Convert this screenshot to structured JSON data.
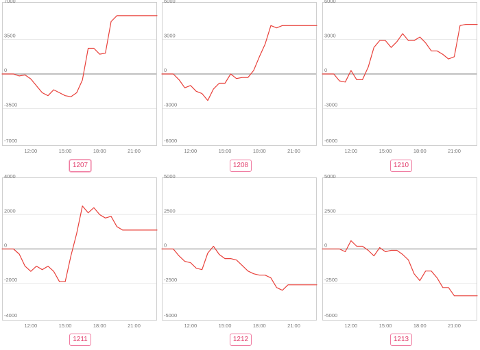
{
  "colors": {
    "series": "#e8403a",
    "badge_text": "#e2406e",
    "badge_border": "#f07aa0"
  },
  "x_labels": [
    "12:00",
    "15:00",
    "18:00",
    "21:00"
  ],
  "panels": [
    {
      "badge": "1207",
      "chart_data": {
        "type": "line",
        "ylim": [
          -7000,
          7000
        ],
        "y_ticks": [
          {
            "v": 7000,
            "label": "7000"
          },
          {
            "v": 3500,
            "label": "3500"
          },
          {
            "v": 0,
            "label": "0"
          },
          {
            "v": -3500,
            "label": "-3500"
          },
          {
            "v": -7000,
            "label": "-7000"
          }
        ],
        "x": [
          9.5,
          10,
          10.5,
          11,
          11.5,
          12,
          12.5,
          13,
          13.5,
          14,
          14.5,
          15,
          15.5,
          16,
          16.5,
          17,
          17.5,
          18,
          18.5,
          19,
          19.5,
          20,
          20.5,
          21,
          21.5,
          22,
          22.5,
          23
        ],
        "values": [
          0,
          0,
          0,
          -200,
          -100,
          -500,
          -1200,
          -1900,
          -2200,
          -1600,
          -1900,
          -2200,
          -2300,
          -1900,
          -600,
          2600,
          2600,
          2000,
          2100,
          5300,
          5900,
          5900,
          5900,
          5900,
          5900,
          5900,
          5900,
          5900
        ]
      }
    },
    {
      "badge": "1208",
      "chart_data": {
        "type": "line",
        "ylim": [
          -6000,
          6000
        ],
        "y_ticks": [
          {
            "v": 6000,
            "label": "6000"
          },
          {
            "v": 3000,
            "label": "3000"
          },
          {
            "v": 0,
            "label": "0"
          },
          {
            "v": -3000,
            "label": "-3000"
          },
          {
            "v": -6000,
            "label": "-6000"
          }
        ],
        "x": [
          9.5,
          10,
          10.5,
          11,
          11.5,
          12,
          12.5,
          13,
          13.5,
          14,
          14.5,
          15,
          15.5,
          16,
          16.5,
          17,
          17.5,
          18,
          18.5,
          19,
          19.5,
          20,
          20.5,
          21,
          21.5,
          22,
          22.5,
          23
        ],
        "values": [
          0,
          0,
          0,
          -500,
          -1200,
          -1000,
          -1500,
          -1700,
          -2300,
          -1300,
          -800,
          -800,
          0,
          -400,
          -300,
          -300,
          300,
          1500,
          2600,
          4200,
          4000,
          4200,
          4200,
          4200,
          4200,
          4200,
          4200,
          4200
        ]
      }
    },
    {
      "badge": "1210",
      "chart_data": {
        "type": "line",
        "ylim": [
          -6000,
          6000
        ],
        "y_ticks": [
          {
            "v": 6000,
            "label": "6000"
          },
          {
            "v": 3000,
            "label": "3000"
          },
          {
            "v": 0,
            "label": "0"
          },
          {
            "v": -3000,
            "label": "-3000"
          },
          {
            "v": -6000,
            "label": "-6000"
          }
        ],
        "x": [
          9.5,
          10,
          10.5,
          11,
          11.5,
          12,
          12.5,
          13,
          13.5,
          14,
          14.5,
          15,
          15.5,
          16,
          16.5,
          17,
          17.5,
          18,
          18.5,
          19,
          19.5,
          20,
          20.5,
          21,
          21.5,
          22,
          22.5,
          23
        ],
        "values": [
          0,
          0,
          0,
          -600,
          -700,
          300,
          -500,
          -500,
          600,
          2300,
          2900,
          2900,
          2300,
          2800,
          3500,
          2900,
          2900,
          3200,
          2700,
          2000,
          2000,
          1700,
          1300,
          1500,
          4200,
          4300,
          4300,
          4300
        ]
      }
    },
    {
      "badge": "1211",
      "chart_data": {
        "type": "line",
        "ylim": [
          -4000,
          4000
        ],
        "y_ticks": [
          {
            "v": 4000,
            "label": "4000"
          },
          {
            "v": 2000,
            "label": "2000"
          },
          {
            "v": 0,
            "label": "0"
          },
          {
            "v": -2000,
            "label": "-2000"
          },
          {
            "v": -4000,
            "label": "-4000"
          }
        ],
        "x": [
          9.5,
          10,
          10.5,
          11,
          11.5,
          12,
          12.5,
          13,
          13.5,
          14,
          14.5,
          15,
          15.5,
          16,
          16.5,
          17,
          17.5,
          18,
          18.5,
          19,
          19.5,
          20,
          20.5,
          21,
          21.5,
          22,
          22.5,
          23
        ],
        "values": [
          0,
          0,
          0,
          -300,
          -1000,
          -1300,
          -1000,
          -1200,
          -1000,
          -1300,
          -1900,
          -1900,
          -400,
          900,
          2500,
          2100,
          2400,
          2000,
          1800,
          1900,
          1300,
          1100,
          1100,
          1100,
          1100,
          1100,
          1100,
          1100
        ]
      }
    },
    {
      "badge": "1212",
      "chart_data": {
        "type": "line",
        "ylim": [
          -5000,
          5000
        ],
        "y_ticks": [
          {
            "v": 5000,
            "label": "5000"
          },
          {
            "v": 2500,
            "label": "2500"
          },
          {
            "v": 0,
            "label": "0"
          },
          {
            "v": -2500,
            "label": "-2500"
          },
          {
            "v": -5000,
            "label": "-5000"
          }
        ],
        "x": [
          9.5,
          10,
          10.5,
          11,
          11.5,
          12,
          12.5,
          13,
          13.5,
          14,
          14.5,
          15,
          15.5,
          16,
          16.5,
          17,
          17.5,
          18,
          18.5,
          19,
          19.5,
          20,
          20.5,
          21,
          21.5,
          22,
          22.5,
          23
        ],
        "values": [
          0,
          0,
          0,
          -500,
          -900,
          -1000,
          -1400,
          -1500,
          -300,
          200,
          -400,
          -700,
          -700,
          -800,
          -1200,
          -1600,
          -1800,
          -1900,
          -1900,
          -2100,
          -2800,
          -3000,
          -2600,
          -2600,
          -2600,
          -2600,
          -2600,
          -2600
        ]
      }
    },
    {
      "badge": "1213",
      "chart_data": {
        "type": "line",
        "ylim": [
          -5000,
          5000
        ],
        "y_ticks": [
          {
            "v": 5000,
            "label": "5000"
          },
          {
            "v": 2500,
            "label": "2500"
          },
          {
            "v": 0,
            "label": "0"
          },
          {
            "v": -2500,
            "label": "-2500"
          },
          {
            "v": -5000,
            "label": "-5000"
          }
        ],
        "x": [
          9.5,
          10,
          10.5,
          11,
          11.5,
          12,
          12.5,
          13,
          13.5,
          14,
          14.5,
          15,
          15.5,
          16,
          16.5,
          17,
          17.5,
          18,
          18.5,
          19,
          19.5,
          20,
          20.5,
          21,
          21.5,
          22,
          22.5,
          23
        ],
        "values": [
          0,
          0,
          0,
          0,
          -200,
          600,
          200,
          200,
          -100,
          -500,
          100,
          -200,
          -100,
          -100,
          -400,
          -800,
          -1800,
          -2300,
          -1600,
          -1600,
          -2100,
          -2800,
          -2800,
          -3400,
          -3400,
          -3400,
          -3400,
          -3400
        ]
      }
    }
  ]
}
